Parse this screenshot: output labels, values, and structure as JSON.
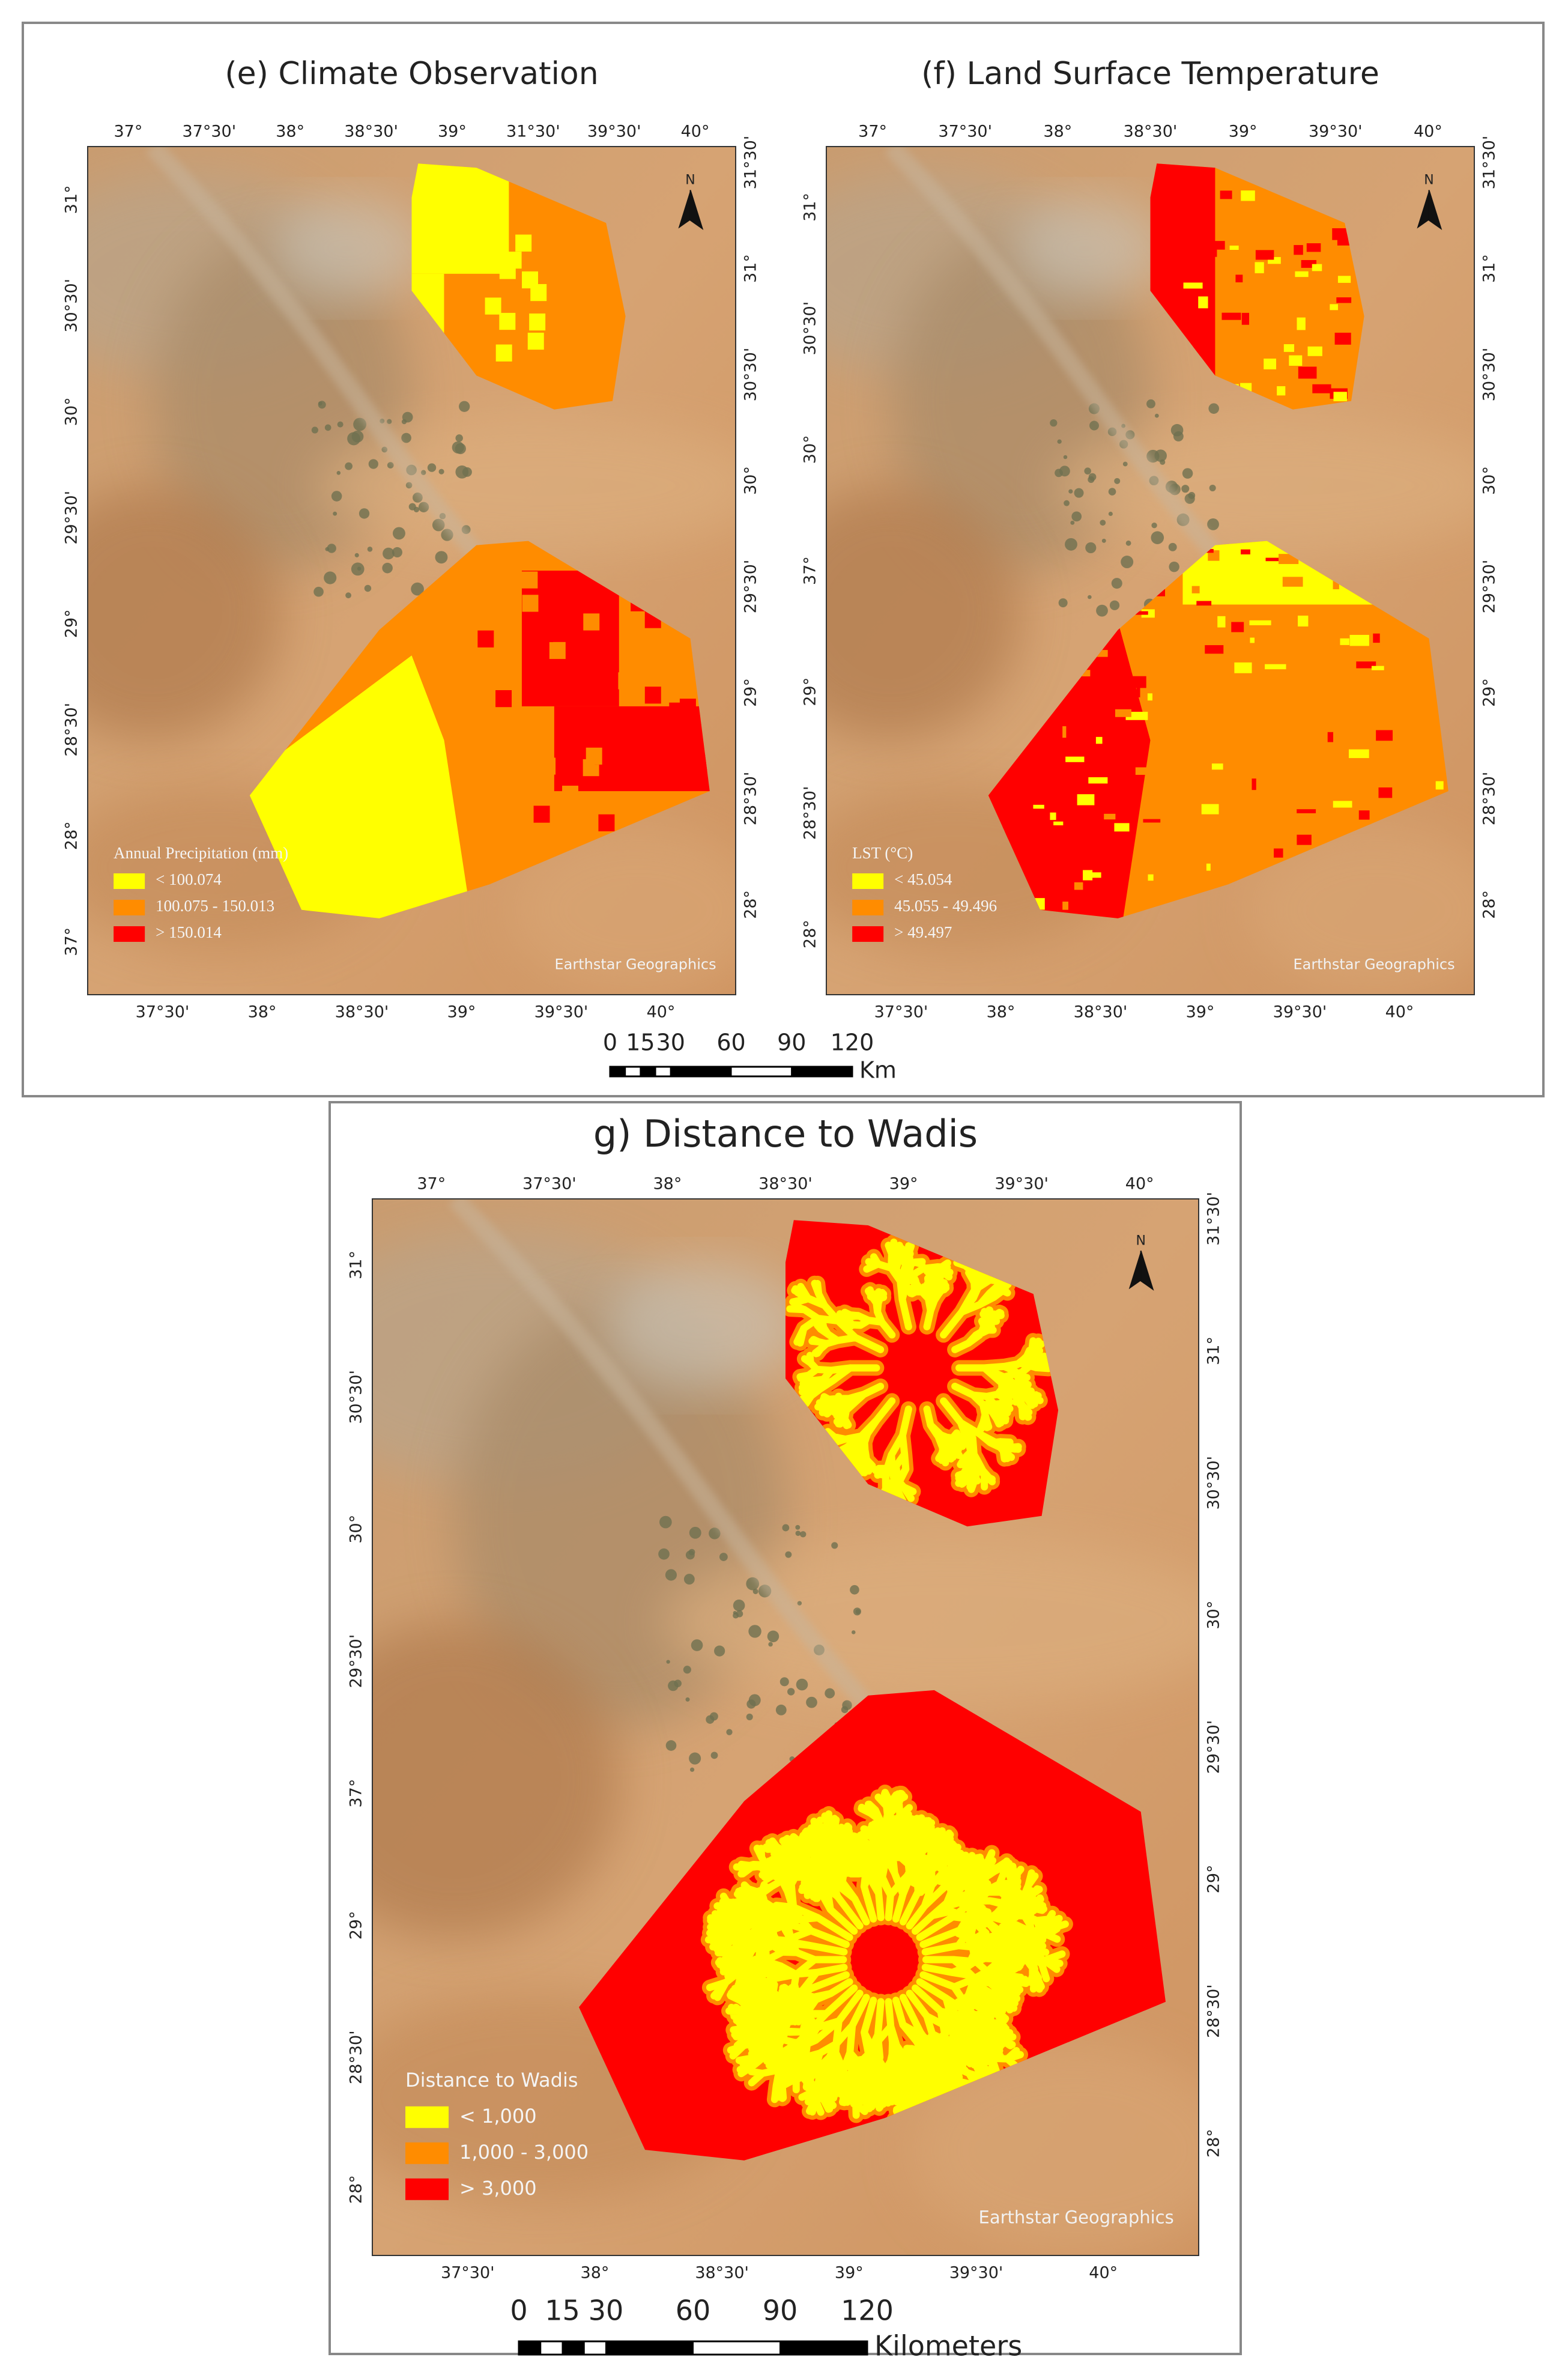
{
  "panels": [
    {
      "title": "(e) Climate Observation",
      "top_labels": [
        "37°",
        "37°30'",
        "38°",
        "38°30'",
        "39°",
        "31°30'",
        "39°30'",
        "40°"
      ],
      "bottom_labels": [
        "37°30'",
        "38°",
        "38°30'",
        "39°",
        "39°30'",
        "40°"
      ],
      "left_labels": [
        "31°",
        "30°30'",
        "30°",
        "29°30'",
        "29°",
        "28°30'",
        "28°",
        "37°"
      ],
      "right_labels": [
        "31°30'",
        "31°",
        "30°30'",
        "30°",
        "29°30'",
        "29°",
        "28°30'",
        "28°"
      ],
      "legend": {
        "title": "Annual Precipitation (mm)",
        "items": [
          {
            "label": "< 100.074",
            "color": "#ffff00"
          },
          {
            "label": "100.075 - 150.013",
            "color": "#ff8c00"
          },
          {
            "label": "> 150.014",
            "color": "#ff0000"
          }
        ]
      },
      "attribution": "Earthstar Geographics",
      "north": "N"
    },
    {
      "title": "(f) Land Surface Temperature",
      "top_labels": [
        "37°",
        "37°30'",
        "38°",
        "38°30'",
        "39°",
        "39°30'",
        "40°"
      ],
      "bottom_labels": [
        "37°30'",
        "38°",
        "38°30'",
        "39°",
        "39°30'",
        "40°"
      ],
      "left_labels": [
        "31°",
        "30°30'",
        "30°",
        "37°",
        "29°",
        "28°30'",
        "28°"
      ],
      "right_labels": [
        "31°30'",
        "31°",
        "30°30'",
        "30°",
        "29°30'",
        "29°",
        "28°30'",
        "28°"
      ],
      "legend": {
        "title": "LST (°C)",
        "items": [
          {
            "label": "< 45.054",
            "color": "#ffff00"
          },
          {
            "label": "45.055 - 49.496",
            "color": "#ff8c00"
          },
          {
            "label": "> 49.497",
            "color": "#ff0000"
          }
        ]
      },
      "attribution": "Earthstar Geographics",
      "north": "N"
    },
    {
      "title": "g) Distance to Wadis",
      "top_labels": [
        "37°",
        "37°30'",
        "38°",
        "38°30'",
        "39°",
        "39°30'",
        "40°"
      ],
      "bottom_labels": [
        "37°30'",
        "38°",
        "38°30'",
        "39°",
        "39°30'",
        "40°"
      ],
      "left_labels": [
        "31°",
        "30°30'",
        "30°",
        "29°30'",
        "37°",
        "29°",
        "28°30'",
        "28°"
      ],
      "right_labels": [
        "31°30'",
        "31°",
        "30°30'",
        "30°",
        "29°30'",
        "29°",
        "28°30'",
        "28°"
      ],
      "legend": {
        "title": "Distance to Wadis",
        "items": [
          {
            "label": "< 1,000",
            "color": "#ffff00"
          },
          {
            "label": "1,000 - 3,000",
            "color": "#ff8c00"
          },
          {
            "label": "> 3,000",
            "color": "#ff0000"
          }
        ]
      },
      "attribution": "Earthstar Geographics",
      "north": "N"
    }
  ],
  "scale_bars": [
    {
      "ticks": [
        "0",
        "15",
        "30",
        "60",
        "90",
        "120"
      ],
      "unit": "Km"
    },
    {
      "ticks": [
        "0",
        "15",
        "30",
        "60",
        "90",
        "120"
      ],
      "unit": "Kilometers"
    }
  ]
}
